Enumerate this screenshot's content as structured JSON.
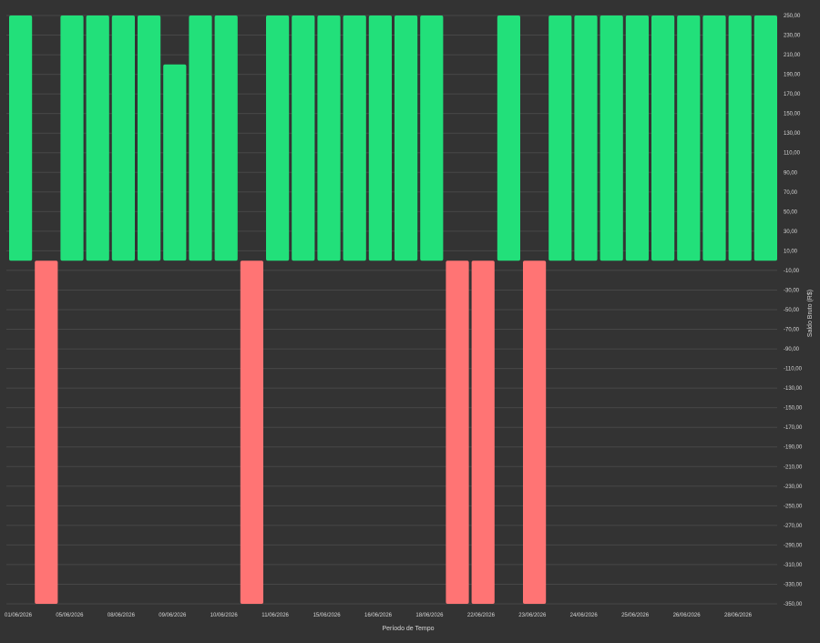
{
  "colors": {
    "background": "#333333",
    "positive": "#22e07a",
    "negative": "#ff7474",
    "grid": "#474747",
    "text": "#d6d6d6"
  },
  "chart_data": {
    "type": "bar",
    "xlabel": "Período de Tempo",
    "ylabel": "Saldo Bruto (R$)",
    "ylim": [
      -350,
      250
    ],
    "grid": true,
    "y_ticks": [
      250,
      230,
      210,
      190,
      170,
      150,
      130,
      110,
      90,
      70,
      50,
      30,
      10,
      -10,
      -30,
      -50,
      -70,
      -90,
      -110,
      -130,
      -150,
      -170,
      -190,
      -210,
      -230,
      -250,
      -270,
      -290,
      -310,
      -330,
      -350
    ],
    "y_tick_labels": [
      "250,00",
      "230,00",
      "210,00",
      "190,00",
      "170,00",
      "150,00",
      "130,00",
      "110,00",
      "90,00",
      "70,00",
      "50,00",
      "30,00",
      "10,00",
      "-10,00",
      "-30,00",
      "-50,00",
      "-70,00",
      "-90,00",
      "-110,00",
      "-130,00",
      "-150,00",
      "-170,00",
      "-190,00",
      "-210,00",
      "-230,00",
      "-250,00",
      "-270,00",
      "-290,00",
      "-310,00",
      "-330,00",
      "-350,00"
    ],
    "x_tick_labels": [
      "01/06/2026",
      "05/06/2026",
      "08/06/2026",
      "09/06/2026",
      "10/06/2026",
      "11/06/2026",
      "15/06/2026",
      "16/06/2026",
      "18/06/2026",
      "22/06/2026",
      "23/06/2026",
      "24/06/2026",
      "25/06/2026",
      "26/06/2026",
      "28/06/2026"
    ],
    "values": [
      250,
      -350,
      250,
      250,
      250,
      250,
      200,
      250,
      250,
      -350,
      250,
      250,
      250,
      250,
      250,
      250,
      250,
      -350,
      -350,
      250,
      -350,
      250,
      250,
      250,
      250,
      250,
      250,
      250,
      250,
      250
    ]
  }
}
